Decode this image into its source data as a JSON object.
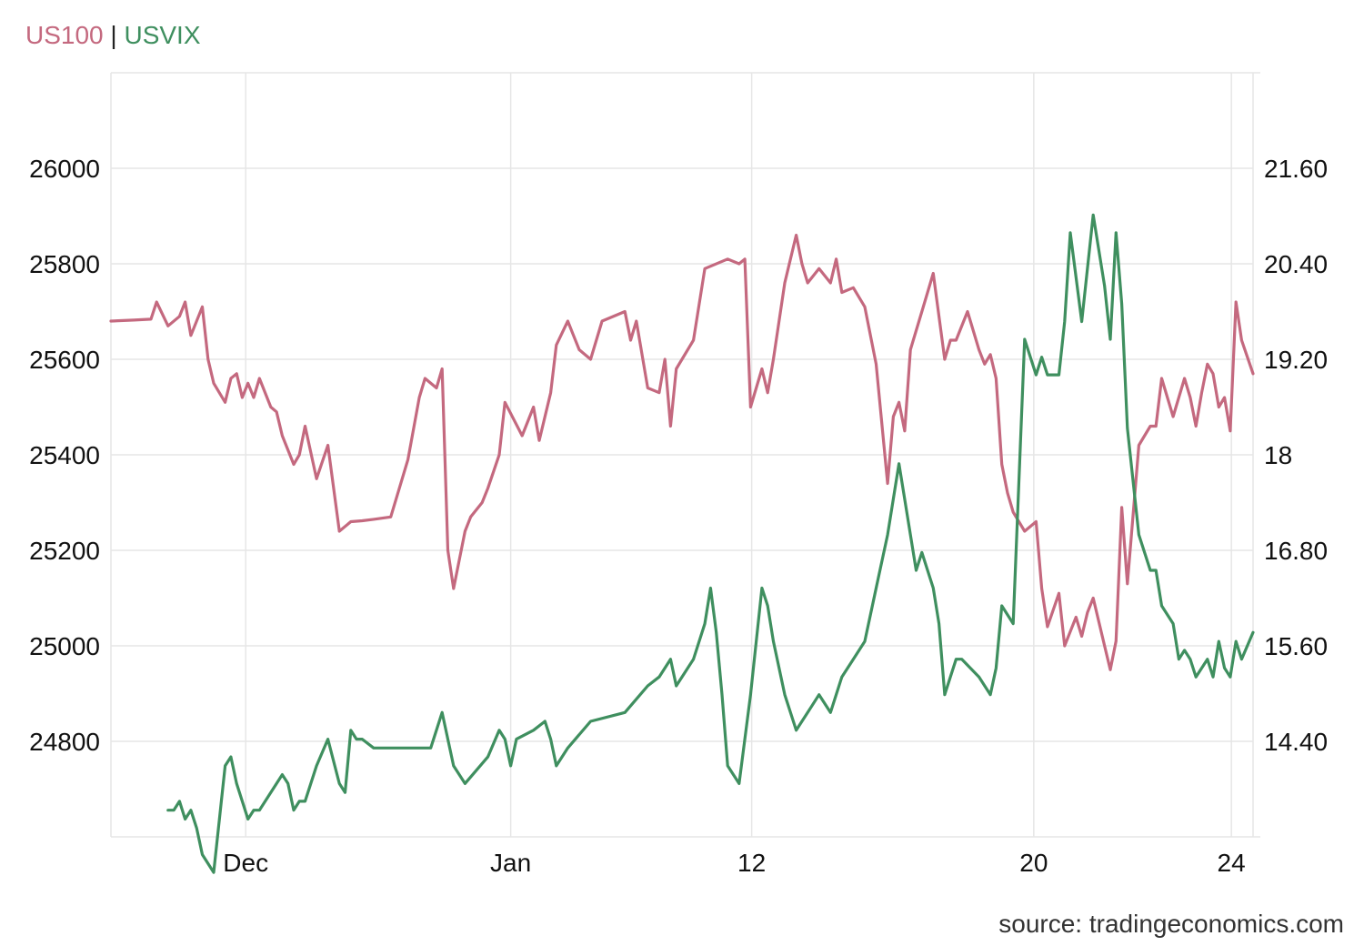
{
  "legend": {
    "series1": "US100",
    "separator": "|",
    "series2": "USVIX"
  },
  "source": "source: tradingeconomics.com",
  "colors": {
    "series1": "#c4697f",
    "series2": "#3f8f5f",
    "grid": "#e6e6e6"
  },
  "chart_data": {
    "type": "line",
    "x_tick_labels": [
      "Dec",
      "Jan",
      "12",
      "20",
      "24"
    ],
    "x_tick_positions": [
      0.118,
      0.35,
      0.561,
      0.808,
      0.981
    ],
    "left_axis": {
      "ylim": [
        24600,
        26200
      ],
      "ticks": [
        24800,
        25000,
        25200,
        25400,
        25600,
        25800,
        26000
      ]
    },
    "right_axis": {
      "ylim": [
        13.8,
        22.4
      ],
      "ticks": [
        "14.40",
        "15.60",
        "16.80",
        "18",
        "19.20",
        "20.40",
        "21.60"
      ]
    },
    "grid": true,
    "series": [
      {
        "name": "US100",
        "axis": "left",
        "x": [
          0.0,
          0.02,
          0.035,
          0.04,
          0.05,
          0.06,
          0.065,
          0.07,
          0.08,
          0.085,
          0.09,
          0.1,
          0.105,
          0.11,
          0.115,
          0.12,
          0.125,
          0.13,
          0.14,
          0.145,
          0.15,
          0.16,
          0.165,
          0.17,
          0.18,
          0.19,
          0.2,
          0.21,
          0.22,
          0.23,
          0.245,
          0.26,
          0.27,
          0.275,
          0.285,
          0.29,
          0.295,
          0.3,
          0.31,
          0.315,
          0.325,
          0.33,
          0.34,
          0.345,
          0.36,
          0.37,
          0.375,
          0.385,
          0.39,
          0.4,
          0.405,
          0.41,
          0.42,
          0.43,
          0.45,
          0.455,
          0.46,
          0.47,
          0.48,
          0.485,
          0.49,
          0.495,
          0.5,
          0.51,
          0.52,
          0.54,
          0.55,
          0.555,
          0.56,
          0.57,
          0.575,
          0.58,
          0.59,
          0.6,
          0.605,
          0.61,
          0.62,
          0.63,
          0.635,
          0.64,
          0.65,
          0.66,
          0.67,
          0.68,
          0.685,
          0.69,
          0.695,
          0.7,
          0.71,
          0.72,
          0.73,
          0.735,
          0.74,
          0.75,
          0.76,
          0.765,
          0.77,
          0.775,
          0.78,
          0.785,
          0.79,
          0.8,
          0.81,
          0.815,
          0.82,
          0.83,
          0.835,
          0.84,
          0.845,
          0.85,
          0.855,
          0.86,
          0.87,
          0.875,
          0.88,
          0.885,
          0.89,
          0.9,
          0.91,
          0.915,
          0.92,
          0.93,
          0.94,
          0.945,
          0.95,
          0.955,
          0.96,
          0.965,
          0.97,
          0.975,
          0.98,
          0.985,
          0.99,
          1.0
        ],
        "values": [
          25680,
          25682,
          25684,
          25720,
          25670,
          25690,
          25720,
          25650,
          25710,
          25600,
          25550,
          25510,
          25560,
          25570,
          25520,
          25550,
          25520,
          25560,
          25500,
          25490,
          25440,
          25380,
          25400,
          25460,
          25350,
          25420,
          25240,
          25260,
          25262,
          25265,
          25270,
          25390,
          25520,
          25560,
          25540,
          25580,
          25200,
          25120,
          25240,
          25270,
          25300,
          25330,
          25400,
          25510,
          25440,
          25500,
          25430,
          25530,
          25630,
          25680,
          25650,
          25620,
          25600,
          25680,
          25700,
          25640,
          25680,
          25540,
          25530,
          25600,
          25460,
          25580,
          25600,
          25640,
          25790,
          25810,
          25800,
          25810,
          25500,
          25580,
          25530,
          25600,
          25760,
          25860,
          25800,
          25760,
          25790,
          25760,
          25810,
          25740,
          25750,
          25710,
          25590,
          25340,
          25480,
          25510,
          25450,
          25620,
          25700,
          25780,
          25600,
          25640,
          25640,
          25700,
          25620,
          25590,
          25610,
          25560,
          25380,
          25320,
          25280,
          25240,
          25260,
          25120,
          25040,
          25110,
          25000,
          25030,
          25060,
          25020,
          25070,
          25100,
          25000,
          24950,
          25010,
          25290,
          25130,
          25420,
          25460,
          25460,
          25560,
          25480,
          25560,
          25520,
          25460,
          25530,
          25590,
          25570,
          25500,
          25520,
          25450,
          25720,
          25640,
          25570
        ]
      },
      {
        "name": "USVIX",
        "axis": "right",
        "x": [
          0.05,
          0.055,
          0.06,
          0.065,
          0.07,
          0.075,
          0.08,
          0.09,
          0.1,
          0.105,
          0.11,
          0.12,
          0.125,
          0.13,
          0.14,
          0.15,
          0.155,
          0.16,
          0.165,
          0.17,
          0.18,
          0.19,
          0.2,
          0.205,
          0.21,
          0.215,
          0.22,
          0.23,
          0.28,
          0.29,
          0.3,
          0.31,
          0.33,
          0.34,
          0.345,
          0.35,
          0.355,
          0.37,
          0.38,
          0.385,
          0.39,
          0.4,
          0.42,
          0.45,
          0.47,
          0.48,
          0.49,
          0.495,
          0.5,
          0.51,
          0.52,
          0.525,
          0.53,
          0.535,
          0.54,
          0.55,
          0.56,
          0.57,
          0.575,
          0.58,
          0.59,
          0.6,
          0.6,
          0.61,
          0.62,
          0.63,
          0.64,
          0.65,
          0.66,
          0.67,
          0.68,
          0.69,
          0.7,
          0.705,
          0.71,
          0.72,
          0.725,
          0.73,
          0.74,
          0.745,
          0.76,
          0.77,
          0.775,
          0.78,
          0.79,
          0.8,
          0.81,
          0.815,
          0.82,
          0.83,
          0.835,
          0.84,
          0.85,
          0.86,
          0.87,
          0.875,
          0.88,
          0.885,
          0.89,
          0.9,
          0.91,
          0.915,
          0.92,
          0.93,
          0.935,
          0.94,
          0.945,
          0.95,
          0.96,
          0.965,
          0.97,
          0.975,
          0.98,
          0.985,
          0.99,
          1.0
        ],
        "values": [
          14.1,
          14.1,
          14.2,
          14.0,
          14.1,
          13.9,
          13.6,
          13.4,
          14.6,
          14.7,
          14.4,
          14.0,
          14.1,
          14.1,
          14.3,
          14.5,
          14.4,
          14.1,
          14.2,
          14.2,
          14.6,
          14.9,
          14.4,
          14.3,
          15.0,
          14.9,
          14.9,
          14.8,
          14.8,
          15.2,
          14.6,
          14.4,
          14.7,
          15.0,
          14.9,
          14.6,
          14.9,
          15.0,
          15.1,
          14.9,
          14.6,
          14.8,
          15.1,
          15.2,
          15.5,
          15.6,
          15.8,
          15.5,
          15.6,
          15.8,
          16.2,
          16.6,
          16.1,
          15.4,
          14.6,
          14.4,
          15.4,
          16.6,
          16.4,
          16.0,
          15.4,
          15.0,
          15.0,
          15.2,
          15.4,
          15.2,
          15.6,
          15.8,
          16.0,
          16.6,
          17.2,
          18.0,
          17.2,
          16.8,
          17.0,
          16.6,
          16.2,
          15.4,
          15.8,
          15.8,
          15.6,
          15.4,
          15.7,
          16.4,
          16.2,
          19.4,
          19.0,
          19.2,
          19.0,
          19.0,
          19.6,
          20.6,
          19.6,
          20.8,
          20.0,
          19.4,
          20.6,
          19.8,
          18.4,
          17.2,
          16.8,
          16.8,
          16.4,
          16.2,
          15.8,
          15.9,
          15.8,
          15.6,
          15.8,
          15.6,
          16.0,
          15.7,
          15.6,
          16.0,
          15.8,
          16.1
        ]
      }
    ]
  }
}
